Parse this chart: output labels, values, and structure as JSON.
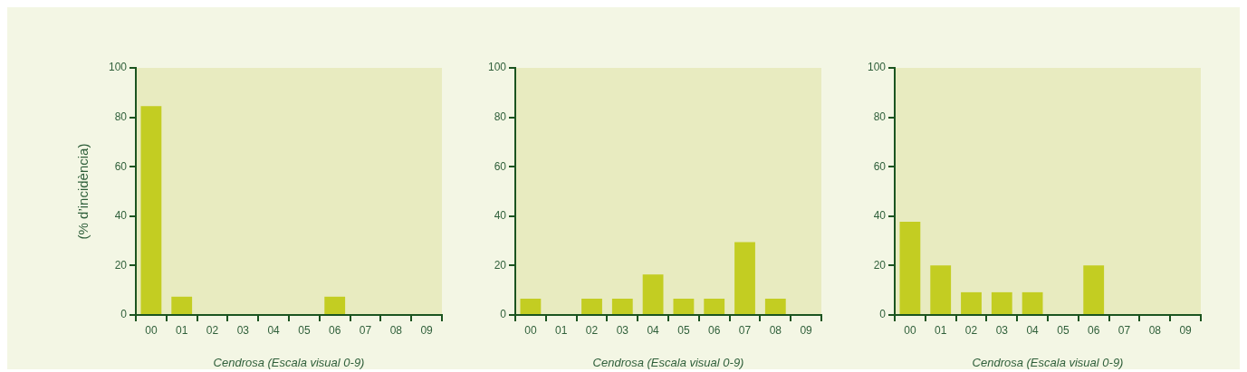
{
  "chart_data": [
    {
      "type": "bar",
      "ylabel": "(% d’incidència)",
      "xlabel": "Cendrosa (Escala visual 0-9)",
      "categories": [
        "00",
        "01",
        "02",
        "03",
        "04",
        "05",
        "06",
        "07",
        "08",
        "09"
      ],
      "color": "#c3cd22",
      "values": [
        84.5,
        7.4,
        0,
        0,
        0,
        0,
        7.4,
        0,
        0,
        0
      ],
      "ylim": [
        0,
        100
      ],
      "yticks": [
        0,
        20,
        40,
        60,
        80,
        100
      ]
    },
    {
      "type": "bar",
      "xlabel": "Cendrosa (Escala visual 0-9)",
      "categories": [
        "00",
        "01",
        "02",
        "03",
        "04",
        "05",
        "06",
        "07",
        "08",
        "09"
      ],
      "color": "#c3cd22",
      "values": [
        6.6,
        0,
        6.6,
        6.6,
        16.4,
        6.6,
        6.6,
        29.5,
        6.6,
        0
      ],
      "ylim": [
        0,
        100
      ],
      "yticks": [
        0,
        20,
        40,
        60,
        80,
        100
      ]
    },
    {
      "type": "bar",
      "xlabel": "Cendrosa (Escala visual 0-9)",
      "categories": [
        "00",
        "01",
        "02",
        "03",
        "04",
        "05",
        "06",
        "07",
        "08",
        "09"
      ],
      "color": "#c3cd22",
      "values": [
        37.7,
        20.1,
        9.2,
        9.2,
        9.2,
        0,
        20.1,
        0,
        0,
        0
      ],
      "ylim": [
        0,
        100
      ],
      "yticks": [
        0,
        20,
        40,
        60,
        80,
        100
      ]
    }
  ]
}
